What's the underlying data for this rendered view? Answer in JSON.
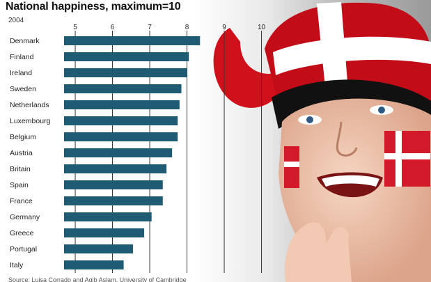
{
  "chart_data": {
    "type": "bar",
    "orientation": "horizontal",
    "title": "National happiness, maximum=10",
    "subtitle": "2004",
    "source": "Source: Luisa Corrado and Aqib Aslam, University of Cambridge",
    "categories": [
      "Denmark",
      "Finland",
      "Ireland",
      "Sweden",
      "Netherlands",
      "Luxembourg",
      "Belgium",
      "Austria",
      "Britain",
      "Spain",
      "France",
      "Germany",
      "Greece",
      "Portugal",
      "Italy"
    ],
    "values": [
      8.35,
      8.05,
      8.0,
      7.85,
      7.8,
      7.75,
      7.75,
      7.6,
      7.45,
      7.35,
      7.35,
      7.05,
      6.85,
      6.55,
      6.3
    ],
    "ticks": [
      5,
      6,
      7,
      8,
      9,
      10
    ],
    "xlim": [
      4.7,
      10
    ],
    "grid": true,
    "colors": {
      "bar": "#1f5c73",
      "grid": "#333333",
      "text": "#222222"
    }
  }
}
